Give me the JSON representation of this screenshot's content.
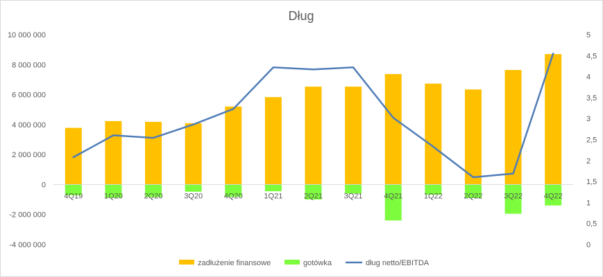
{
  "chart_data": {
    "type": "bar",
    "title": "Dług",
    "categories": [
      "4Q19",
      "1Q20",
      "2Q20",
      "3Q20",
      "4Q20",
      "1Q21",
      "2Q21",
      "3Q21",
      "4Q21",
      "1Q22",
      "2Q22",
      "3Q22",
      "4Q22"
    ],
    "series": [
      {
        "name": "zadłużenie finansowe",
        "type": "bar",
        "axis": "left",
        "color": "#FFC000",
        "values": [
          3780000,
          4230000,
          4180000,
          4090000,
          5200000,
          5830000,
          6530000,
          6530000,
          7370000,
          6730000,
          6340000,
          7640000,
          8700000
        ]
      },
      {
        "name": "gotówka",
        "type": "bar",
        "axis": "left",
        "color": "#7CFC3C",
        "values": [
          -720000,
          -880000,
          -840000,
          -480000,
          -820000,
          -450000,
          -1000000,
          -600000,
          -2400000,
          -680000,
          -900000,
          -1950000,
          -1400000
        ]
      },
      {
        "name": "dług netto/EBITDA",
        "type": "line",
        "axis": "right",
        "color": "#4F7DB8",
        "values": [
          2.08,
          2.6,
          2.54,
          2.86,
          3.23,
          4.22,
          4.17,
          4.22,
          3.02,
          2.33,
          1.6,
          1.69,
          4.55
        ]
      }
    ],
    "left_axis": {
      "min": -4000000,
      "max": 10000000,
      "step": 2000000,
      "tick_labels": [
        "-4 000 000",
        "-2 000 000",
        "0",
        "2 000 000",
        "4 000 000",
        "6 000 000",
        "8 000 000",
        "10 000 000"
      ]
    },
    "right_axis": {
      "min": 0,
      "max": 5,
      "step": 0.5,
      "tick_labels": [
        "0",
        "0,5",
        "1",
        "1,5",
        "2",
        "2,5",
        "3",
        "3,5",
        "4",
        "4,5",
        "5"
      ]
    },
    "grid": false,
    "legend_position": "bottom"
  }
}
